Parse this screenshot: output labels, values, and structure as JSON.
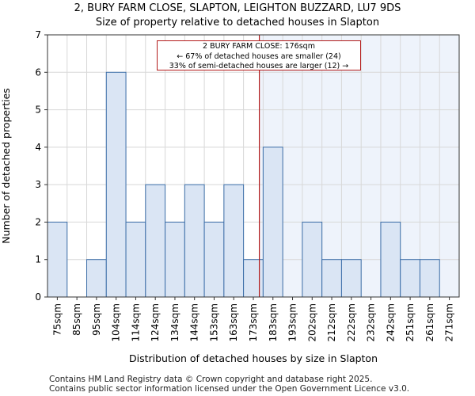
{
  "chart_data": {
    "type": "bar",
    "title": "2, BURY FARM CLOSE, SLAPTON, LEIGHTON BUZZARD, LU7 9DS",
    "subtitle": "Size of property relative to detached houses in Slapton",
    "xlabel": "Distribution of detached houses by size in Slapton",
    "ylabel": "Number of detached properties",
    "categories": [
      "75sqm",
      "85sqm",
      "95sqm",
      "104sqm",
      "114sqm",
      "124sqm",
      "134sqm",
      "144sqm",
      "153sqm",
      "163sqm",
      "173sqm",
      "183sqm",
      "193sqm",
      "202sqm",
      "212sqm",
      "222sqm",
      "232sqm",
      "242sqm",
      "251sqm",
      "261sqm",
      "271sqm"
    ],
    "values": [
      2,
      0,
      1,
      6,
      2,
      3,
      2,
      3,
      2,
      3,
      1,
      4,
      0,
      2,
      1,
      1,
      0,
      2,
      1,
      1,
      0
    ],
    "ylim": [
      0,
      7
    ],
    "yticks": [
      0,
      1,
      2,
      3,
      4,
      5,
      6,
      7
    ],
    "grid": true,
    "property_marker_sqm": 176,
    "annotation": {
      "line1": "2 BURY FARM CLOSE: 176sqm",
      "line2": "← 67% of detached houses are smaller (24)",
      "line3": "33% of semi-detached houses are larger (12) →"
    },
    "colors": {
      "bar_fill": "#dae5f4",
      "bar_edge": "#3c6ea8",
      "highlight_region": "#eef3fb",
      "marker_line": "#b31b1b",
      "grid": "#d8d8d8"
    }
  },
  "footer": {
    "line1": "Contains HM Land Registry data © Crown copyright and database right 2025.",
    "line2": "Contains public sector information licensed under the Open Government Licence v3.0."
  }
}
